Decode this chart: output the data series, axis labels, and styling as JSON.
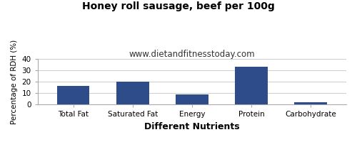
{
  "title": "Honey roll sausage, beef per 100g",
  "subtitle": "www.dietandfitnesstoday.com",
  "xlabel": "Different Nutrients",
  "ylabel": "Percentage of RDH (%)",
  "categories": [
    "Total Fat",
    "Saturated Fat",
    "Energy",
    "Protein",
    "Carbohydrate"
  ],
  "values": [
    16.3,
    20.2,
    9.1,
    33.3,
    2.3
  ],
  "bar_color": "#2e4b8a",
  "ylim": [
    0,
    40
  ],
  "yticks": [
    0,
    10,
    20,
    30,
    40
  ],
  "background_color": "#ffffff",
  "plot_bg_color": "#ffffff",
  "title_fontsize": 10,
  "subtitle_fontsize": 8.5,
  "xlabel_fontsize": 9,
  "ylabel_fontsize": 7.5,
  "tick_fontsize": 7.5,
  "bar_width": 0.55
}
